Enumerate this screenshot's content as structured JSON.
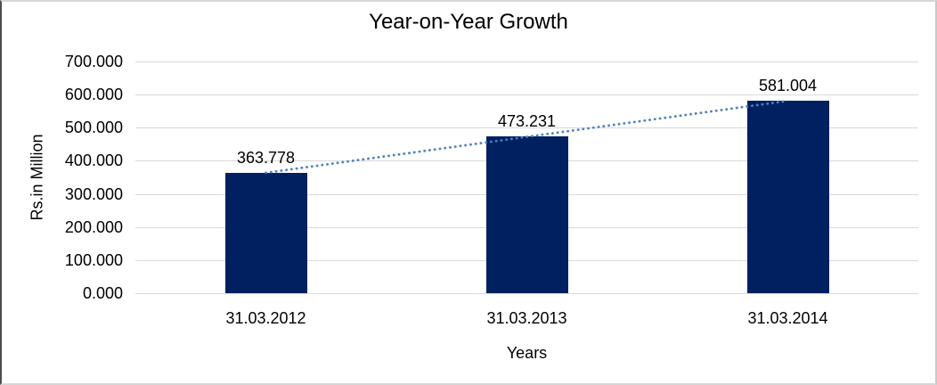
{
  "chart_data": {
    "type": "bar",
    "title": "Year-on-Year Growth",
    "xlabel": "Years",
    "ylabel": "Rs.in Million",
    "categories": [
      "31.03.2012",
      "31.03.2013",
      "31.03.2014"
    ],
    "values": [
      363.778,
      473.231,
      581.004
    ],
    "value_labels": [
      "363.778",
      "473.231",
      "581.004"
    ],
    "y_ticks": [
      "700.000",
      "600.000",
      "500.000",
      "400.000",
      "300.000",
      "200.000",
      "100.000",
      "0.000"
    ],
    "ylim": [
      0,
      700
    ],
    "grid": true,
    "legend_position": "none",
    "trendline": {
      "type": "linear",
      "style": "dotted",
      "color": "#4f81bd"
    },
    "colors": {
      "bar": "#002060",
      "gridline": "#d9d9d9",
      "text": "#000000",
      "background": "#ffffff"
    }
  }
}
